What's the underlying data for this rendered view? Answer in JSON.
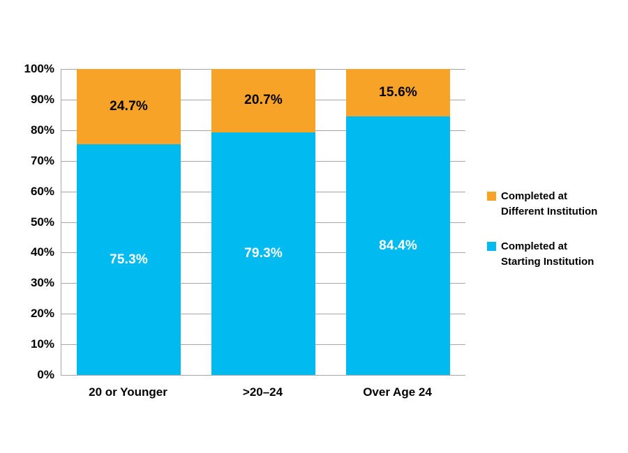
{
  "chart_data": {
    "type": "bar",
    "subtype": "stacked-column-100",
    "title": "",
    "categories": [
      "20 or Younger",
      ">20–24",
      "Over Age 24"
    ],
    "series": [
      {
        "name": "Completed at Starting Institution",
        "color": "#00BAF0",
        "values": [
          75.3,
          79.3,
          84.4
        ],
        "data_labels": [
          "75.3%",
          "79.3%",
          "84.4%"
        ],
        "label_color": "#FFFFFF"
      },
      {
        "name": "Completed at Different Institution",
        "color": "#F6A327",
        "values": [
          24.7,
          20.7,
          15.6
        ],
        "data_labels": [
          "24.7%",
          "20.7%",
          "15.6%"
        ],
        "label_color": "#000000"
      }
    ],
    "y_axis": {
      "min": 0,
      "max": 100,
      "step": 10,
      "tick_labels": [
        "0%",
        "10%",
        "20%",
        "30%",
        "40%",
        "50%",
        "60%",
        "70%",
        "80%",
        "90%",
        "100%"
      ]
    },
    "xlabel": "",
    "ylabel": "",
    "ylim": [
      0,
      100
    ],
    "grid": {
      "visible": true,
      "every_percent": 10,
      "color": "#A6A6A6"
    },
    "axis_color": "#A6A6A6",
    "legend": {
      "position": "right",
      "items": [
        {
          "swatch_color": "#F6A327",
          "label_lines": [
            "Completed at",
            "Different Institution"
          ]
        },
        {
          "swatch_color": "#00BAF0",
          "label_lines": [
            "Completed at",
            "Starting Institution"
          ]
        }
      ]
    }
  },
  "colors": {
    "background": "#FFFFFF",
    "text": "#000000",
    "grid": "#A6A6A6"
  }
}
